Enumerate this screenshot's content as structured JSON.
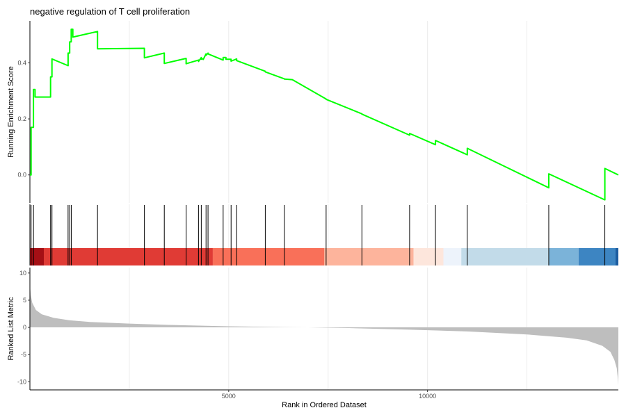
{
  "chart_data": {
    "type": "line",
    "title": "negative regulation of T cell proliferation",
    "xlabel": "Rank in Ordered Dataset",
    "x_range": [
      0,
      14800
    ],
    "x_ticks": [
      5000,
      10000
    ],
    "x_tick_labels": [
      "5000",
      "10000"
    ],
    "grid": "vertical",
    "panels": {
      "running_enrichment": {
        "ylabel": "Running Enrichment Score",
        "ylim": [
          -0.1,
          0.55
        ],
        "y_ticks": [
          0.0,
          0.2,
          0.4
        ],
        "y_tick_labels": [
          "0.0",
          "0.2",
          "0.4"
        ],
        "line_color": "#00ff00",
        "series": [
          {
            "x": [
              0,
              30,
              30,
              90,
              90,
              130,
              130,
              520,
              520,
              555,
              555,
              960,
              960,
              1000,
              1000,
              1040,
              1040,
              1080,
              1080,
              1700,
              1700,
              2880,
              2880,
              3380,
              3380,
              3930,
              3930,
              4240,
              4240,
              4310,
              4310,
              4360,
              4360,
              4430,
              4430,
              4480,
              4480,
              4860,
              4860,
              4930,
              4930,
              5060,
              5060,
              5200,
              5200,
              5920,
              5920,
              6400,
              6400,
              6600,
              6600,
              7450,
              7450,
              8350,
              8350,
              9550,
              9550,
              10200,
              10200,
              11000,
              11000,
              13050,
              13050,
              14460,
              14460,
              14800
            ],
            "y": [
              0.0,
              0.0,
              0.17,
              0.17,
              0.305,
              0.305,
              0.278,
              0.278,
              0.35,
              0.35,
              0.414,
              0.39,
              0.435,
              0.435,
              0.475,
              0.475,
              0.52,
              0.52,
              0.492,
              0.512,
              0.45,
              0.452,
              0.418,
              0.435,
              0.398,
              0.416,
              0.397,
              0.41,
              0.405,
              0.419,
              0.413,
              0.415,
              0.412,
              0.432,
              0.427,
              0.435,
              0.432,
              0.41,
              0.419,
              0.419,
              0.413,
              0.413,
              0.406,
              0.414,
              0.408,
              0.37,
              0.368,
              0.343,
              0.342,
              0.34,
              0.34,
              0.271,
              0.27,
              0.218,
              0.217,
              0.142,
              0.148,
              0.108,
              0.123,
              0.072,
              0.095,
              -0.046,
              0.004,
              -0.089,
              0.023,
              0.0
            ]
          }
        ]
      },
      "hit_ranks": [
        30,
        90,
        520,
        555,
        960,
        1000,
        1040,
        1700,
        2880,
        3380,
        3930,
        4240,
        4310,
        4430,
        4480,
        4860,
        5060,
        5200,
        5920,
        6400,
        7450,
        8350,
        9550,
        10200,
        11000,
        13050,
        14460
      ],
      "rank_color_bar": [
        {
          "from": 0,
          "to": 350,
          "color": "#a50f15"
        },
        {
          "from": 350,
          "to": 4600,
          "color": "#e03b35"
        },
        {
          "from": 4600,
          "to": 7400,
          "color": "#f97059"
        },
        {
          "from": 7400,
          "to": 9650,
          "color": "#fdb49c"
        },
        {
          "from": 9650,
          "to": 10400,
          "color": "#fde6dc"
        },
        {
          "from": 10400,
          "to": 10850,
          "color": "#edf3fb"
        },
        {
          "from": 10850,
          "to": 13050,
          "color": "#c2dbe9"
        },
        {
          "from": 13050,
          "to": 13800,
          "color": "#7bb3d9"
        },
        {
          "from": 13800,
          "to": 14730,
          "color": "#3d85c2"
        },
        {
          "from": 14730,
          "to": 14800,
          "color": "#1c5da0"
        }
      ],
      "ranked_list_metric": {
        "ylabel": "Ranked List Metric",
        "ylim": [
          -11.5,
          11
        ],
        "y_ticks": [
          10,
          5,
          0,
          -5,
          -10
        ],
        "y_tick_labels": [
          "10",
          "5",
          "0",
          "-5",
          "-10"
        ],
        "fill_color": "#bebebe",
        "x": [
          0,
          20,
          60,
          150,
          300,
          600,
          1000,
          1500,
          2500,
          3500,
          5000,
          6500,
          7000,
          8000,
          9500,
          11000,
          12500,
          13500,
          14000,
          14400,
          14600,
          14700,
          14760,
          14790,
          14800
        ],
        "y": [
          8.0,
          6.0,
          4.5,
          3.2,
          2.4,
          1.75,
          1.3,
          1.0,
          0.7,
          0.45,
          0.2,
          0.05,
          0.0,
          -0.12,
          -0.4,
          -0.75,
          -1.3,
          -1.9,
          -2.4,
          -3.4,
          -4.5,
          -6.0,
          -7.5,
          -9.5,
          -10.6
        ]
      }
    }
  }
}
